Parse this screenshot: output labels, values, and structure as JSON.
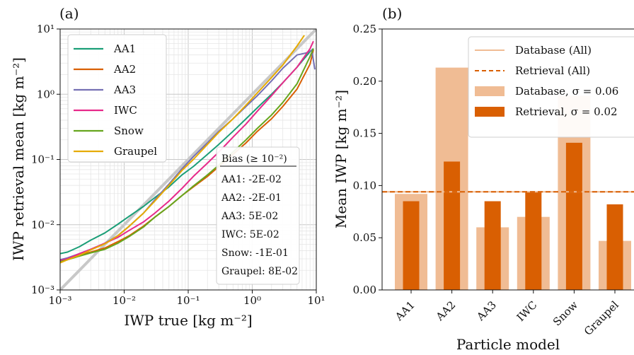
{
  "chart_data": [
    {
      "panel_label": "(a)",
      "type": "line",
      "xscale": "log",
      "yscale": "log",
      "xlim": [
        0.001,
        10
      ],
      "ylim": [
        0.001,
        10
      ],
      "xlabel": "IWP true [kg m⁻²]",
      "ylabel": "IWP retrieval mean [kg m⁻²]",
      "x_ticks": [
        "10⁻³",
        "10⁻²",
        "10⁻¹",
        "10⁰",
        "10¹"
      ],
      "y_ticks": [
        "10⁻³",
        "10⁻²",
        "10⁻¹",
        "10⁰",
        "10¹"
      ],
      "grid": true,
      "legend_position": "top-left",
      "reference_line": "1:1",
      "series": [
        {
          "name": "AA1",
          "color": "#1b9e77",
          "x": [
            0.001,
            0.0013,
            0.002,
            0.003,
            0.005,
            0.008,
            0.012,
            0.02,
            0.03,
            0.05,
            0.08,
            0.12,
            0.2,
            0.3,
            0.5,
            0.8,
            1.2,
            2.0,
            3.0,
            5.0,
            8.0,
            9.0
          ],
          "y": [
            0.0036,
            0.0038,
            0.0046,
            0.0058,
            0.0075,
            0.0102,
            0.0135,
            0.019,
            0.026,
            0.038,
            0.058,
            0.078,
            0.12,
            0.17,
            0.27,
            0.42,
            0.62,
            1.0,
            1.5,
            2.6,
            4.5,
            5.0
          ]
        },
        {
          "name": "AA2",
          "color": "#d95f02",
          "x": [
            0.001,
            0.0013,
            0.002,
            0.003,
            0.005,
            0.008,
            0.012,
            0.02,
            0.03,
            0.05,
            0.08,
            0.12,
            0.2,
            0.3,
            0.5,
            0.8,
            1.2,
            2.0,
            3.0,
            5.0,
            8.0,
            9.0
          ],
          "y": [
            0.0028,
            0.003,
            0.0034,
            0.0038,
            0.0044,
            0.0055,
            0.0068,
            0.0095,
            0.013,
            0.019,
            0.028,
            0.038,
            0.055,
            0.078,
            0.12,
            0.18,
            0.27,
            0.42,
            0.65,
            1.2,
            2.9,
            4.8
          ]
        },
        {
          "name": "AA3",
          "color": "#7570b3",
          "x": [
            0.001,
            0.0013,
            0.002,
            0.003,
            0.005,
            0.008,
            0.012,
            0.02,
            0.03,
            0.05,
            0.08,
            0.12,
            0.2,
            0.3,
            0.5,
            0.8,
            1.2,
            2.0,
            3.0,
            5.0,
            7.0,
            8.5,
            9.5
          ],
          "y": [
            0.0029,
            0.0031,
            0.0036,
            0.0042,
            0.0052,
            0.0068,
            0.0095,
            0.015,
            0.024,
            0.042,
            0.072,
            0.11,
            0.18,
            0.27,
            0.42,
            0.65,
            0.95,
            1.6,
            2.5,
            4.0,
            4.3,
            4.7,
            2.4
          ]
        },
        {
          "name": "IWC",
          "color": "#e7298a",
          "x": [
            0.001,
            0.0013,
            0.002,
            0.003,
            0.005,
            0.008,
            0.012,
            0.02,
            0.03,
            0.05,
            0.08,
            0.12,
            0.2,
            0.3,
            0.5,
            0.8,
            1.2,
            2.0,
            3.0,
            5.0,
            8.0,
            9.0
          ],
          "y": [
            0.0028,
            0.003,
            0.0036,
            0.0042,
            0.0052,
            0.0064,
            0.0082,
            0.011,
            0.015,
            0.023,
            0.036,
            0.055,
            0.088,
            0.13,
            0.22,
            0.35,
            0.55,
            0.95,
            1.5,
            2.6,
            5.0,
            6.5
          ]
        },
        {
          "name": "Snow",
          "color": "#66a61e",
          "x": [
            0.001,
            0.0013,
            0.002,
            0.003,
            0.005,
            0.008,
            0.012,
            0.02,
            0.03,
            0.05,
            0.08,
            0.12,
            0.2,
            0.3,
            0.5,
            0.8,
            1.2,
            2.0,
            3.0,
            5.0,
            8.0,
            9.0
          ],
          "y": [
            0.0027,
            0.0029,
            0.0033,
            0.0037,
            0.0042,
            0.0052,
            0.0066,
            0.0092,
            0.013,
            0.019,
            0.028,
            0.039,
            0.058,
            0.082,
            0.13,
            0.2,
            0.3,
            0.48,
            0.75,
            1.45,
            3.8,
            5.0
          ]
        },
        {
          "name": "Graupel",
          "color": "#e6ab02",
          "x": [
            0.001,
            0.0013,
            0.002,
            0.003,
            0.005,
            0.008,
            0.012,
            0.02,
            0.03,
            0.05,
            0.08,
            0.12,
            0.2,
            0.3,
            0.5,
            0.8,
            1.2,
            2.0,
            3.0,
            5.0,
            6.5
          ],
          "y": [
            0.0026,
            0.0029,
            0.0034,
            0.0041,
            0.0051,
            0.0068,
            0.0095,
            0.015,
            0.023,
            0.04,
            0.068,
            0.1,
            0.17,
            0.26,
            0.42,
            0.68,
            1.05,
            1.8,
            2.8,
            5.5,
            8.0
          ]
        }
      ],
      "bias_box": {
        "title": "Bias (≥ 10⁻²)",
        "entries": [
          "AA1: -2E-02",
          "AA2: -2E-01",
          "AA3: 5E-02",
          "IWC: 5E-02",
          "Snow: -1E-01",
          "Graupel: 8E-02"
        ]
      }
    },
    {
      "panel_label": "(b)",
      "type": "bar",
      "categories": [
        "AA1",
        "AA2",
        "AA3",
        "IWC",
        "Snow",
        "Graupel"
      ],
      "xlabel": "Particle model",
      "ylabel": "Mean IWP [kg m⁻²]",
      "ylim": [
        0,
        0.25
      ],
      "y_ticks": [
        "0.00",
        "0.05",
        "0.10",
        "0.15",
        "0.20",
        "0.25"
      ],
      "legend_position": "top-right",
      "series": [
        {
          "name": "Database, σ = 0.06",
          "color": "#f0bc94",
          "values": [
            0.092,
            0.213,
            0.06,
            0.07,
            0.186,
            0.047
          ]
        },
        {
          "name": "Retrieval, σ = 0.02",
          "color": "#d95f02",
          "values": [
            0.085,
            0.123,
            0.085,
            0.094,
            0.141,
            0.082
          ]
        }
      ],
      "hlines": [
        {
          "name": "Database (All)",
          "color": "#f0bc94",
          "style": "solid",
          "value": 0.094
        },
        {
          "name": "Retrieval (All)",
          "color": "#d95f02",
          "style": "dashed",
          "value": 0.094
        }
      ]
    }
  ]
}
